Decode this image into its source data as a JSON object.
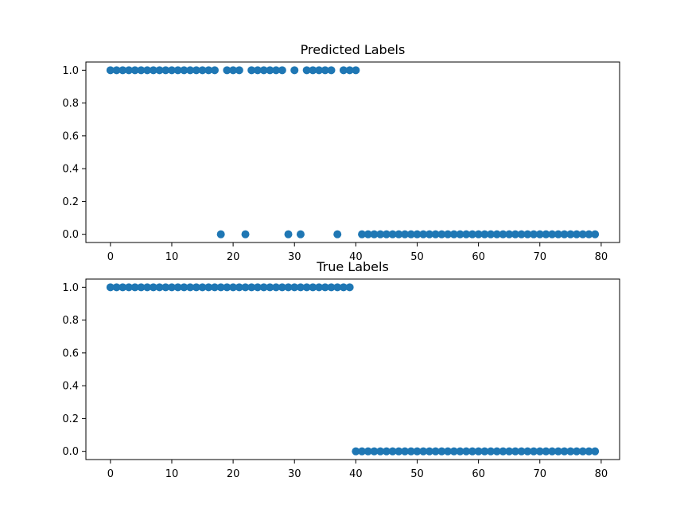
{
  "chart_data": [
    {
      "type": "scatter",
      "title": "Predicted Labels",
      "xlabel": "",
      "ylabel": "",
      "xlim": [
        -4,
        83
      ],
      "ylim": [
        -0.05,
        1.05
      ],
      "xticks": [
        0,
        10,
        20,
        30,
        40,
        50,
        60,
        70,
        80
      ],
      "yticks": [
        0.0,
        0.2,
        0.4,
        0.6,
        0.8,
        1.0
      ],
      "ytick_labels": [
        "0.0",
        "0.2",
        "0.4",
        "0.6",
        "0.8",
        "1.0"
      ],
      "grid": false,
      "color": "#1f77b4",
      "x": [
        0,
        1,
        2,
        3,
        4,
        5,
        6,
        7,
        8,
        9,
        10,
        11,
        12,
        13,
        14,
        15,
        16,
        17,
        18,
        19,
        20,
        21,
        22,
        23,
        24,
        25,
        26,
        27,
        28,
        29,
        30,
        31,
        32,
        33,
        34,
        35,
        36,
        37,
        38,
        39,
        40,
        41,
        42,
        43,
        44,
        45,
        46,
        47,
        48,
        49,
        50,
        51,
        52,
        53,
        54,
        55,
        56,
        57,
        58,
        59,
        60,
        61,
        62,
        63,
        64,
        65,
        66,
        67,
        68,
        69,
        70,
        71,
        72,
        73,
        74,
        75,
        76,
        77,
        78,
        79
      ],
      "y": [
        1,
        1,
        1,
        1,
        1,
        1,
        1,
        1,
        1,
        1,
        1,
        1,
        1,
        1,
        1,
        1,
        1,
        1,
        0,
        1,
        1,
        1,
        0,
        1,
        1,
        1,
        1,
        1,
        1,
        0,
        1,
        0,
        1,
        1,
        1,
        1,
        1,
        0,
        1,
        1,
        1,
        0,
        0,
        0,
        0,
        0,
        0,
        0,
        0,
        0,
        0,
        0,
        0,
        0,
        0,
        0,
        0,
        0,
        0,
        0,
        0,
        0,
        0,
        0,
        0,
        0,
        0,
        0,
        0,
        0,
        0,
        0,
        0,
        0,
        0,
        0,
        0,
        0,
        0,
        0
      ]
    },
    {
      "type": "scatter",
      "title": "True Labels",
      "xlabel": "",
      "ylabel": "",
      "xlim": [
        -4,
        83
      ],
      "ylim": [
        -0.05,
        1.05
      ],
      "xticks": [
        0,
        10,
        20,
        30,
        40,
        50,
        60,
        70,
        80
      ],
      "yticks": [
        0.0,
        0.2,
        0.4,
        0.6,
        0.8,
        1.0
      ],
      "ytick_labels": [
        "0.0",
        "0.2",
        "0.4",
        "0.6",
        "0.8",
        "1.0"
      ],
      "grid": false,
      "color": "#1f77b4",
      "x": [
        0,
        1,
        2,
        3,
        4,
        5,
        6,
        7,
        8,
        9,
        10,
        11,
        12,
        13,
        14,
        15,
        16,
        17,
        18,
        19,
        20,
        21,
        22,
        23,
        24,
        25,
        26,
        27,
        28,
        29,
        30,
        31,
        32,
        33,
        34,
        35,
        36,
        37,
        38,
        39,
        40,
        41,
        42,
        43,
        44,
        45,
        46,
        47,
        48,
        49,
        50,
        51,
        52,
        53,
        54,
        55,
        56,
        57,
        58,
        59,
        60,
        61,
        62,
        63,
        64,
        65,
        66,
        67,
        68,
        69,
        70,
        71,
        72,
        73,
        74,
        75,
        76,
        77,
        78,
        79
      ],
      "y": [
        1,
        1,
        1,
        1,
        1,
        1,
        1,
        1,
        1,
        1,
        1,
        1,
        1,
        1,
        1,
        1,
        1,
        1,
        1,
        1,
        1,
        1,
        1,
        1,
        1,
        1,
        1,
        1,
        1,
        1,
        1,
        1,
        1,
        1,
        1,
        1,
        1,
        1,
        1,
        1,
        0,
        0,
        0,
        0,
        0,
        0,
        0,
        0,
        0,
        0,
        0,
        0,
        0,
        0,
        0,
        0,
        0,
        0,
        0,
        0,
        0,
        0,
        0,
        0,
        0,
        0,
        0,
        0,
        0,
        0,
        0,
        0,
        0,
        0,
        0,
        0,
        0,
        0,
        0,
        0
      ]
    }
  ]
}
